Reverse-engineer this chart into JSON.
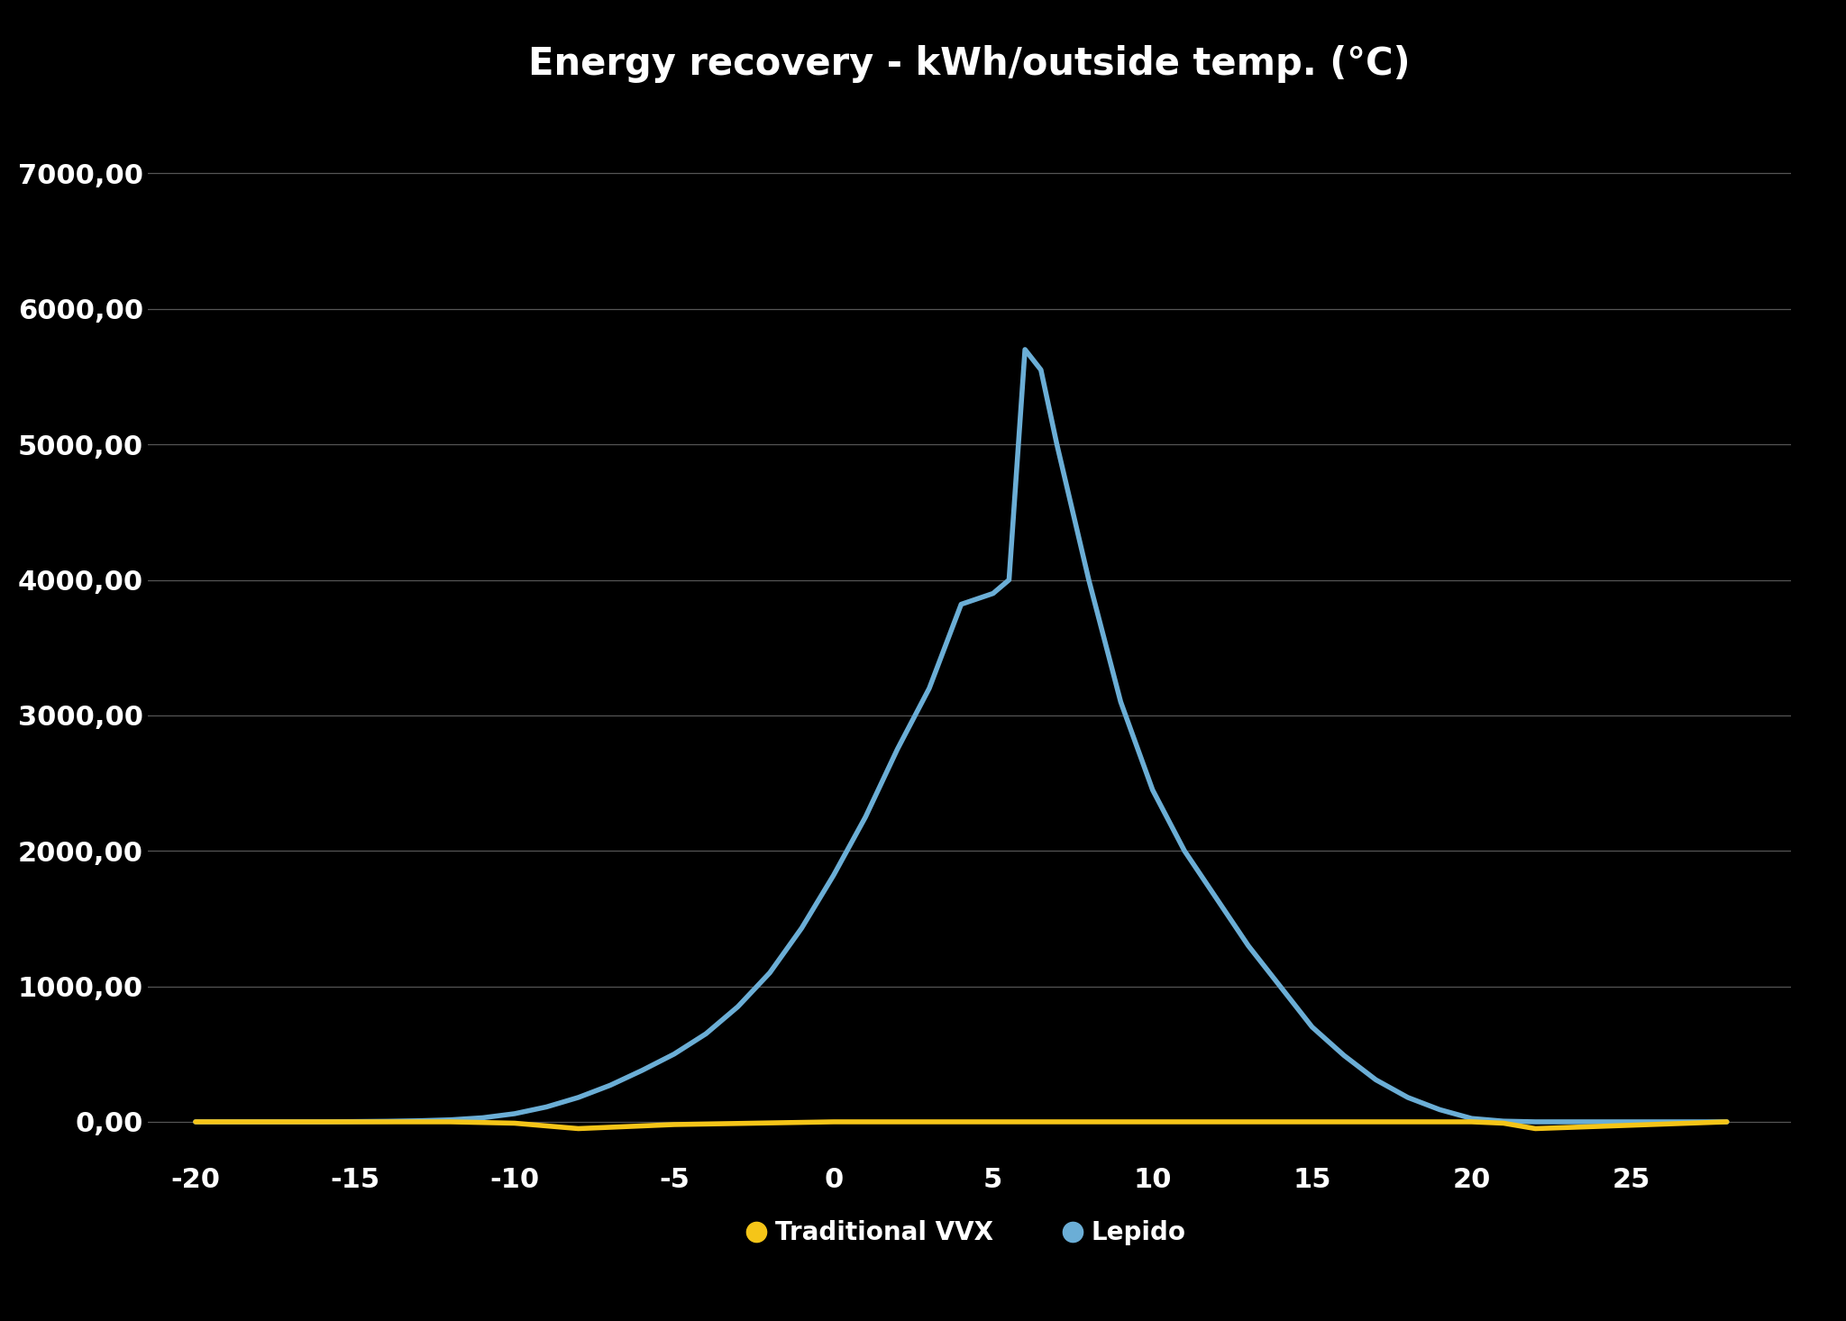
{
  "title": "Energy recovery - kWh/outside temp. (°C)",
  "background_color": "#000000",
  "title_color": "#ffffff",
  "grid_color": "#555555",
  "tick_color": "#ffffff",
  "x_ticks": [
    -20,
    -15,
    -10,
    -5,
    0,
    5,
    10,
    15,
    20,
    25
  ],
  "y_ticks": [
    0,
    1000,
    2000,
    3000,
    4000,
    5000,
    6000,
    7000
  ],
  "y_labels": [
    "0,00",
    "1000,00",
    "2000,00",
    "3000,00",
    "4000,00",
    "5000,00",
    "6000,00",
    "7000,00"
  ],
  "xlim": [
    -21.5,
    30
  ],
  "ylim": [
    -300,
    7500
  ],
  "lepido_x": [
    -20,
    -19,
    -18,
    -17,
    -16,
    -15,
    -14,
    -13,
    -12,
    -11,
    -10,
    -9,
    -8,
    -7,
    -6,
    -5,
    -4,
    -3,
    -2,
    -1,
    0,
    1,
    2,
    3,
    4,
    5,
    5.5,
    6,
    6.5,
    7,
    8,
    9,
    10,
    11,
    12,
    13,
    14,
    15,
    16,
    17,
    18,
    19,
    20,
    21,
    22,
    23,
    24,
    25,
    26,
    27,
    28
  ],
  "lepido_y": [
    0,
    0,
    0,
    0,
    0,
    2,
    4,
    8,
    15,
    30,
    60,
    110,
    180,
    270,
    380,
    500,
    650,
    850,
    1100,
    1430,
    1820,
    2250,
    2750,
    3200,
    3820,
    3900,
    4000,
    5700,
    5550,
    5000,
    4000,
    3100,
    2450,
    2000,
    1650,
    1300,
    1000,
    700,
    490,
    310,
    180,
    90,
    25,
    5,
    0,
    0,
    0,
    0,
    0,
    0,
    0
  ],
  "traditional_x": [
    -20,
    -15,
    -12,
    -10,
    -9,
    -8,
    -7,
    -6,
    -5,
    0,
    5,
    10,
    15,
    20,
    21,
    22,
    28
  ],
  "traditional_y": [
    0,
    0,
    0,
    -10,
    -30,
    -50,
    -40,
    -30,
    -20,
    0,
    0,
    0,
    0,
    0,
    -10,
    -50,
    0
  ],
  "lepido_color": "#6baed6",
  "traditional_color": "#f5c518",
  "lepido_label": "Lepido",
  "traditional_label": "Traditional VVX",
  "line_width": 4.0,
  "legend_text_color": "#ffffff",
  "legend_fontsize": 20,
  "title_fontsize": 30,
  "tick_fontsize": 22
}
